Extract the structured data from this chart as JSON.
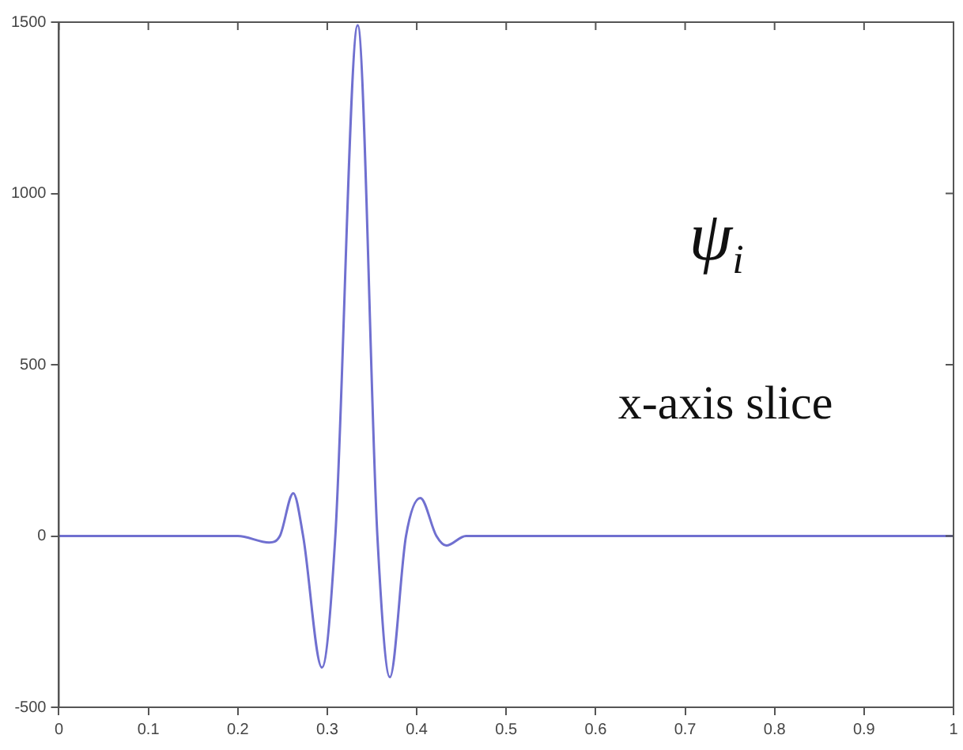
{
  "chart_data": {
    "type": "line",
    "x": [
      0,
      0.2,
      0.235,
      0.247,
      0.262,
      0.273,
      0.294,
      0.309,
      0.334,
      0.356,
      0.37,
      0.388,
      0.404,
      0.422,
      0.433,
      0.455,
      1
    ],
    "series": [
      {
        "color": "#7070d0",
        "values": [
          0,
          0,
          -19,
          0,
          125,
          0,
          -384,
          0,
          1491,
          0,
          -412,
          0,
          111,
          0,
          -28,
          0,
          0
        ]
      }
    ],
    "xlim": [
      0,
      1
    ],
    "xticks": [
      0,
      0.1,
      0.2,
      0.3,
      0.4,
      0.5,
      0.6,
      0.7,
      0.8,
      0.9,
      1
    ],
    "ylim": [
      -500,
      1500
    ],
    "yticks": [
      -500,
      0,
      500,
      1000,
      1500
    ],
    "grid": false,
    "legend": false,
    "marker": "none",
    "line_style": "solid",
    "annotations": [
      "ψ$_{i}$",
      "x-axis slice"
    ]
  }
}
